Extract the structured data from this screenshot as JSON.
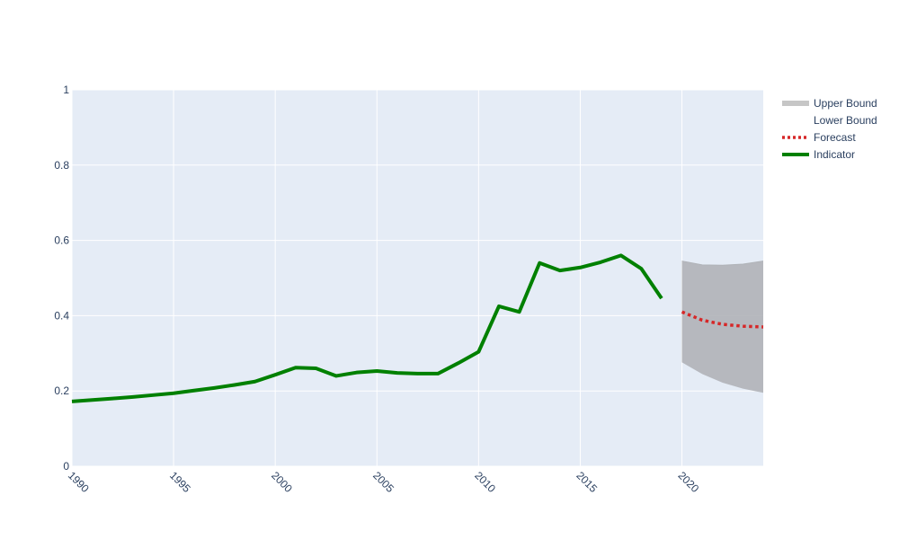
{
  "chart_data": {
    "type": "line",
    "title": "",
    "xlabel": "",
    "ylabel": "",
    "xlim": [
      1990,
      2024
    ],
    "ylim": [
      0,
      1
    ],
    "x_ticks": [
      "1990",
      "1995",
      "2000",
      "2005",
      "2010",
      "2015",
      "2020"
    ],
    "y_ticks": [
      "0",
      "0.2",
      "0.4",
      "0.6",
      "0.8",
      "1"
    ],
    "grid": true,
    "legend_position": "top-right",
    "series": [
      {
        "name": "Upper Bound",
        "color": "#b0b3b8",
        "x": [
          2020,
          2021,
          2022,
          2023,
          2024
        ],
        "values": [
          0.545,
          0.535,
          0.534,
          0.537,
          0.545
        ]
      },
      {
        "name": "Lower Bound",
        "color": "#b0b3b8",
        "x": [
          2020,
          2021,
          2022,
          2023,
          2024
        ],
        "values": [
          0.276,
          0.245,
          0.222,
          0.206,
          0.195
        ]
      },
      {
        "name": "Forecast",
        "color": "#d62728",
        "dash": "dot",
        "x": [
          2020,
          2021,
          2022,
          2023,
          2024
        ],
        "values": [
          0.41,
          0.388,
          0.377,
          0.372,
          0.37
        ]
      },
      {
        "name": "Indicator",
        "color": "#008000",
        "x": [
          1990,
          1991,
          1992,
          1993,
          1994,
          1995,
          1996,
          1997,
          1998,
          1999,
          2000,
          2001,
          2002,
          2003,
          2004,
          2005,
          2006,
          2007,
          2008,
          2009,
          2010,
          2011,
          2012,
          2013,
          2014,
          2015,
          2016,
          2017,
          2018,
          2019
        ],
        "values": [
          0.172,
          0.176,
          0.18,
          0.184,
          0.189,
          0.194,
          0.201,
          0.208,
          0.216,
          0.225,
          0.243,
          0.262,
          0.26,
          0.24,
          0.249,
          0.253,
          0.248,
          0.246,
          0.246,
          0.274,
          0.304,
          0.425,
          0.41,
          0.54,
          0.52,
          0.528,
          0.542,
          0.56,
          0.525,
          0.446
        ]
      }
    ]
  }
}
